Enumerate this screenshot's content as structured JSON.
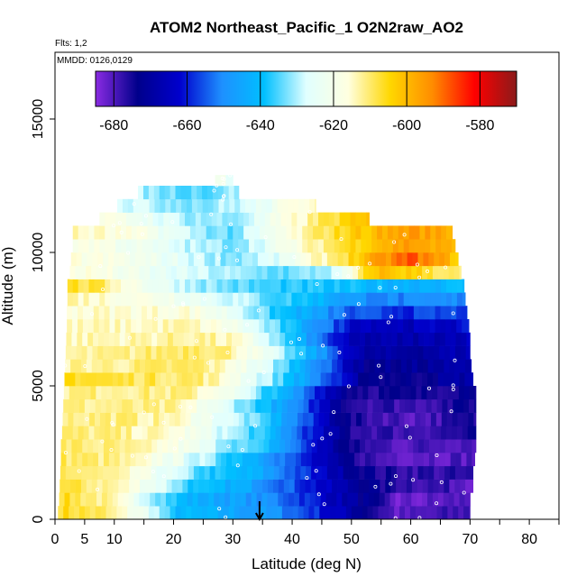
{
  "chart_data": {
    "type": "heatmap",
    "title": "ATOM2 Northeast_Pacific_1 O2N2raw_AO2",
    "flights_label": "Flts: 1,2",
    "dates_label": "MMDD: 0126,0129",
    "xlabel": "Latitude (deg N)",
    "ylabel": "Altitude (m)",
    "xlim": [
      0,
      85
    ],
    "ylim": [
      0,
      17500
    ],
    "x_ticks": [
      0,
      5,
      10,
      20,
      30,
      40,
      50,
      60,
      70,
      80
    ],
    "y_ticks": [
      0,
      5000,
      10000,
      15000
    ],
    "y_tick_labels": [
      "0",
      "5000",
      "10000",
      "15000"
    ],
    "colorbar": {
      "min": -685,
      "max": -570,
      "ticks": [
        -680,
        -660,
        -640,
        -620,
        -600,
        -580
      ],
      "tick_labels": [
        "-680",
        "-660",
        "-640",
        "-620",
        "-600",
        "-580"
      ],
      "colors": [
        "#8a2be2",
        "#00008b",
        "#0000cd",
        "#1e90ff",
        "#00bfff",
        "#e0ffff",
        "#ffffe0",
        "#ffd700",
        "#ff8c00",
        "#ff0000",
        "#8b1a1a"
      ]
    },
    "marker_latitude": 34.5,
    "grid": false,
    "legend": "colorbar-top",
    "bands": [
      {
        "z": [
          0,
          500
        ],
        "x": [
          0.5,
          70
        ],
        "pts": [
          [
            0,
            -605
          ],
          [
            8,
            -610
          ],
          [
            16,
            -625
          ],
          [
            20,
            -640
          ],
          [
            30,
            -645
          ],
          [
            38,
            -650
          ],
          [
            45,
            -660
          ],
          [
            52,
            -672
          ],
          [
            58,
            -682
          ],
          [
            70,
            -678
          ]
        ]
      },
      {
        "z": [
          500,
          1000
        ],
        "x": [
          0.7,
          70
        ],
        "pts": [
          [
            0,
            -605
          ],
          [
            8,
            -612
          ],
          [
            16,
            -628
          ],
          [
            22,
            -642
          ],
          [
            30,
            -646
          ],
          [
            38,
            -652
          ],
          [
            45,
            -662
          ],
          [
            52,
            -672
          ],
          [
            58,
            -683
          ],
          [
            70,
            -680
          ]
        ]
      },
      {
        "z": [
          1000,
          1500
        ],
        "x": [
          0.8,
          70.5
        ],
        "pts": [
          [
            0,
            -607
          ],
          [
            10,
            -613
          ],
          [
            18,
            -625
          ],
          [
            24,
            -640
          ],
          [
            32,
            -644
          ],
          [
            40,
            -655
          ],
          [
            47,
            -666
          ],
          [
            55,
            -675
          ],
          [
            70,
            -680
          ]
        ]
      },
      {
        "z": [
          1500,
          2000
        ],
        "x": [
          0.9,
          70.5
        ],
        "pts": [
          [
            0,
            -608
          ],
          [
            10,
            -614
          ],
          [
            18,
            -624
          ],
          [
            26,
            -638
          ],
          [
            34,
            -643
          ],
          [
            42,
            -658
          ],
          [
            48,
            -668
          ],
          [
            55,
            -676
          ],
          [
            70,
            -678
          ]
        ]
      },
      {
        "z": [
          2000,
          2500
        ],
        "x": [
          1.0,
          70.8
        ],
        "pts": [
          [
            0,
            -609
          ],
          [
            10,
            -612
          ],
          [
            20,
            -622
          ],
          [
            28,
            -635
          ],
          [
            34,
            -642
          ],
          [
            42,
            -660
          ],
          [
            48,
            -672
          ],
          [
            55,
            -680
          ],
          [
            70,
            -680
          ]
        ]
      },
      {
        "z": [
          2500,
          3000
        ],
        "x": [
          1.0,
          71
        ],
        "pts": [
          [
            0,
            -610
          ],
          [
            10,
            -612
          ],
          [
            20,
            -618
          ],
          [
            30,
            -632
          ],
          [
            36,
            -640
          ],
          [
            44,
            -662
          ],
          [
            50,
            -676
          ],
          [
            58,
            -680
          ],
          [
            71,
            -678
          ]
        ]
      },
      {
        "z": [
          3000,
          3500
        ],
        "x": [
          1.2,
          71
        ],
        "pts": [
          [
            0,
            -611
          ],
          [
            10,
            -612
          ],
          [
            20,
            -616
          ],
          [
            30,
            -630
          ],
          [
            36,
            -640
          ],
          [
            44,
            -662
          ],
          [
            50,
            -676
          ],
          [
            58,
            -678
          ],
          [
            71,
            -676
          ]
        ]
      },
      {
        "z": [
          3500,
          4000
        ],
        "x": [
          1.3,
          71
        ],
        "pts": [
          [
            0,
            -611
          ],
          [
            10,
            -611
          ],
          [
            20,
            -614
          ],
          [
            30,
            -628
          ],
          [
            36,
            -638
          ],
          [
            44,
            -660
          ],
          [
            50,
            -676
          ],
          [
            60,
            -680
          ],
          [
            71,
            -676
          ]
        ]
      },
      {
        "z": [
          4000,
          4500
        ],
        "x": [
          1.4,
          71
        ],
        "pts": [
          [
            0,
            -612
          ],
          [
            10,
            -612
          ],
          [
            20,
            -613
          ],
          [
            26,
            -622
          ],
          [
            34,
            -636
          ],
          [
            42,
            -655
          ],
          [
            50,
            -676
          ],
          [
            60,
            -678
          ],
          [
            71,
            -674
          ]
        ]
      },
      {
        "z": [
          4500,
          5000
        ],
        "x": [
          1.5,
          71
        ],
        "pts": [
          [
            0,
            -612
          ],
          [
            12,
            -611
          ],
          [
            22,
            -612
          ],
          [
            28,
            -618
          ],
          [
            34,
            -632
          ],
          [
            42,
            -652
          ],
          [
            50,
            -674
          ],
          [
            60,
            -676
          ],
          [
            71,
            -672
          ]
        ]
      },
      {
        "z": [
          5000,
          5500
        ],
        "x": [
          1.6,
          70.5
        ],
        "pts": [
          [
            0,
            -604
          ],
          [
            10,
            -608
          ],
          [
            24,
            -610
          ],
          [
            30,
            -618
          ],
          [
            36,
            -630
          ],
          [
            44,
            -650
          ],
          [
            52,
            -672
          ],
          [
            60,
            -674
          ],
          [
            70,
            -668
          ]
        ]
      },
      {
        "z": [
          5500,
          6000
        ],
        "x": [
          1.7,
          70.2
        ],
        "pts": [
          [
            0,
            -613
          ],
          [
            10,
            -612
          ],
          [
            24,
            -610
          ],
          [
            30,
            -617
          ],
          [
            36,
            -628
          ],
          [
            44,
            -648
          ],
          [
            52,
            -672
          ],
          [
            60,
            -672
          ],
          [
            70,
            -668
          ]
        ]
      },
      {
        "z": [
          6000,
          6500
        ],
        "x": [
          1.8,
          70
        ],
        "pts": [
          [
            0,
            -614
          ],
          [
            10,
            -613
          ],
          [
            24,
            -608
          ],
          [
            30,
            -612
          ],
          [
            36,
            -625
          ],
          [
            44,
            -645
          ],
          [
            52,
            -670
          ],
          [
            60,
            -670
          ],
          [
            70,
            -666
          ]
        ]
      },
      {
        "z": [
          6500,
          7000
        ],
        "x": [
          1.9,
          70
        ],
        "pts": [
          [
            0,
            -614
          ],
          [
            12,
            -614
          ],
          [
            24,
            -612
          ],
          [
            30,
            -615
          ],
          [
            36,
            -628
          ],
          [
            42,
            -645
          ],
          [
            50,
            -668
          ],
          [
            60,
            -668
          ],
          [
            70,
            -664
          ]
        ]
      },
      {
        "z": [
          7000,
          7500
        ],
        "x": [
          2.0,
          69.8
        ],
        "pts": [
          [
            0,
            -615
          ],
          [
            12,
            -615
          ],
          [
            22,
            -614
          ],
          [
            30,
            -620
          ],
          [
            36,
            -632
          ],
          [
            44,
            -648
          ],
          [
            50,
            -662
          ],
          [
            60,
            -665
          ],
          [
            70,
            -662
          ]
        ]
      },
      {
        "z": [
          7500,
          8000
        ],
        "x": [
          2.0,
          69.5
        ],
        "pts": [
          [
            0,
            -615
          ],
          [
            12,
            -616
          ],
          [
            22,
            -616
          ],
          [
            30,
            -624
          ],
          [
            36,
            -636
          ],
          [
            44,
            -646
          ],
          [
            50,
            -656
          ],
          [
            60,
            -658
          ],
          [
            70,
            -656
          ]
        ]
      },
      {
        "z": [
          8000,
          8500
        ],
        "x": [
          2.1,
          69.2
        ],
        "pts": [
          [
            0,
            -612
          ],
          [
            10,
            -616
          ],
          [
            20,
            -620
          ],
          [
            30,
            -628
          ],
          [
            36,
            -634
          ],
          [
            44,
            -640
          ],
          [
            50,
            -648
          ],
          [
            60,
            -652
          ],
          [
            70,
            -650
          ]
        ]
      },
      {
        "z": [
          8500,
          9000
        ],
        "x": [
          2.1,
          69
        ],
        "pts": [
          [
            0,
            -605
          ],
          [
            8,
            -610
          ],
          [
            16,
            -622
          ],
          [
            24,
            -630
          ],
          [
            32,
            -635
          ],
          [
            40,
            -638
          ],
          [
            50,
            -640
          ],
          [
            60,
            -642
          ],
          [
            70,
            -640
          ]
        ]
      },
      {
        "z": [
          9000,
          9500
        ],
        "x": [
          2.5,
          68.5
        ],
        "pts": [
          [
            0,
            -616
          ],
          [
            8,
            -618
          ],
          [
            16,
            -624
          ],
          [
            24,
            -628
          ],
          [
            32,
            -632
          ],
          [
            40,
            -634
          ],
          [
            48,
            -628
          ],
          [
            54,
            -600
          ],
          [
            62,
            -605
          ],
          [
            68,
            -612
          ]
        ]
      },
      {
        "z": [
          9500,
          10000
        ],
        "x": [
          2.7,
          68
        ],
        "pts": [
          [
            0,
            -617
          ],
          [
            8,
            -618
          ],
          [
            16,
            -622
          ],
          [
            24,
            -628
          ],
          [
            30,
            -632
          ],
          [
            38,
            -626
          ],
          [
            46,
            -612
          ],
          [
            54,
            -598
          ],
          [
            60,
            -588
          ],
          [
            64,
            -596
          ],
          [
            68,
            -602
          ]
        ]
      },
      {
        "z": [
          10000,
          10500
        ],
        "x": [
          3.0,
          67.5
        ],
        "pts": [
          [
            0,
            -616
          ],
          [
            8,
            -618
          ],
          [
            16,
            -624
          ],
          [
            24,
            -630
          ],
          [
            30,
            -632
          ],
          [
            38,
            -622
          ],
          [
            46,
            -610
          ],
          [
            54,
            -600
          ],
          [
            60,
            -595
          ],
          [
            66,
            -600
          ]
        ]
      },
      {
        "z": [
          10500,
          11000
        ],
        "x": [
          3.0,
          67
        ],
        "pts": [
          [
            0,
            -614
          ],
          [
            8,
            -616
          ],
          [
            16,
            -620
          ],
          [
            24,
            -630
          ],
          [
            30,
            -634
          ],
          [
            38,
            -620
          ],
          [
            46,
            -608
          ],
          [
            54,
            -600
          ],
          [
            60,
            -595
          ],
          [
            66,
            -598
          ]
        ]
      },
      {
        "z": [
          11000,
          11500
        ],
        "x": [
          7.5,
          53
        ],
        "pts": [
          [
            7,
            -618
          ],
          [
            14,
            -622
          ],
          [
            22,
            -630
          ],
          [
            30,
            -632
          ],
          [
            38,
            -620
          ],
          [
            46,
            -608
          ],
          [
            53,
            -602
          ]
        ]
      },
      {
        "z": [
          11500,
          12000
        ],
        "x": [
          10.5,
          44
        ],
        "pts": [
          [
            10,
            -626
          ],
          [
            18,
            -630
          ],
          [
            26,
            -632
          ],
          [
            34,
            -626
          ],
          [
            40,
            -618
          ],
          [
            44,
            -612
          ]
        ]
      },
      {
        "z": [
          12000,
          12500
        ],
        "x": [
          14,
          31
        ],
        "pts": [
          [
            14,
            -630
          ],
          [
            20,
            -633
          ],
          [
            26,
            -634
          ],
          [
            31,
            -630
          ]
        ]
      },
      {
        "z": [
          12500,
          12900
        ],
        "x": [
          27,
          30
        ],
        "pts": [
          [
            27,
            -618
          ],
          [
            30,
            -625
          ]
        ]
      }
    ]
  }
}
